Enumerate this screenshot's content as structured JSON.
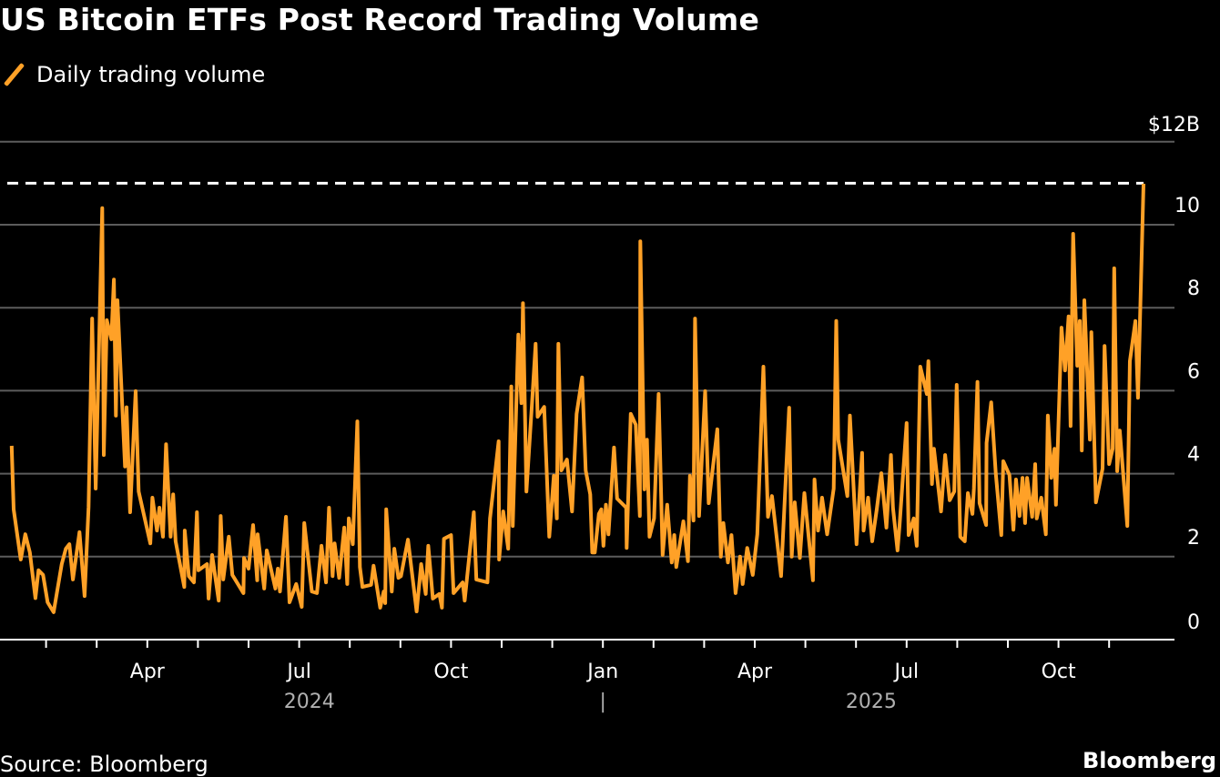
{
  "title": "US Bitcoin ETFs Post Record Trading Volume",
  "legend": {
    "label": "Daily trading volume",
    "icon": "orange-line-swatch"
  },
  "source": "Source: Bloomberg",
  "brand": "Bloomberg",
  "colors": {
    "line": "#ffa127",
    "grid": "#5c5c5c",
    "record": "#ffffff",
    "text": "#ffffff",
    "year": "#b0b0b0"
  },
  "chart_data": {
    "type": "line",
    "title": "US Bitcoin ETFs Post Record Trading Volume",
    "xlabel": "",
    "ylabel": "",
    "x_units": "months since 2024-01-01",
    "xlim": [
      0,
      23
    ],
    "ylim": [
      0,
      12
    ],
    "grid": true,
    "legend_position": "top-left",
    "y_ticks": [
      0,
      2,
      4,
      6,
      8,
      10,
      12
    ],
    "y_tick_labels": [
      "0",
      "2",
      "4",
      "6",
      "8",
      "10",
      "$12B"
    ],
    "x_minor_ticks": [
      1,
      2,
      3,
      4,
      5,
      6,
      7,
      8,
      9,
      10,
      11,
      12,
      13,
      14,
      15,
      16,
      17,
      18,
      19,
      20,
      21,
      22
    ],
    "x_ticks": [
      {
        "m": 3,
        "label": "Apr"
      },
      {
        "m": 6,
        "label": "Jul"
      },
      {
        "m": 9,
        "label": "Oct"
      },
      {
        "m": 12,
        "label": "Jan"
      },
      {
        "m": 15,
        "label": "Apr"
      },
      {
        "m": 18,
        "label": "Jul"
      },
      {
        "m": 21,
        "label": "Oct"
      }
    ],
    "years": [
      {
        "m": 6.2,
        "label": "2024"
      },
      {
        "m": 12,
        "label": "|"
      },
      {
        "m": 17.3,
        "label": "2025"
      }
    ],
    "record_line": 11.0,
    "series": [
      {
        "name": "Daily trading volume",
        "points": [
          [
            0.32,
            4.67
          ],
          [
            0.36,
            3.14
          ],
          [
            0.5,
            1.93
          ],
          [
            0.59,
            2.54
          ],
          [
            0.68,
            2.1
          ],
          [
            0.79,
            1.0
          ],
          [
            0.85,
            1.67
          ],
          [
            0.94,
            1.56
          ],
          [
            1.03,
            0.9
          ],
          [
            1.15,
            0.66
          ],
          [
            1.31,
            1.82
          ],
          [
            1.39,
            2.19
          ],
          [
            1.46,
            2.3
          ],
          [
            1.53,
            1.45
          ],
          [
            1.66,
            2.59
          ],
          [
            1.76,
            1.05
          ],
          [
            1.84,
            3.2
          ],
          [
            1.91,
            7.74
          ],
          [
            1.98,
            3.64
          ],
          [
            2.11,
            10.4
          ],
          [
            2.14,
            4.45
          ],
          [
            2.2,
            7.7
          ],
          [
            2.29,
            7.24
          ],
          [
            2.34,
            8.68
          ],
          [
            2.38,
            5.4
          ],
          [
            2.41,
            8.18
          ],
          [
            2.56,
            4.17
          ],
          [
            2.59,
            5.6
          ],
          [
            2.66,
            3.07
          ],
          [
            2.77,
            5.99
          ],
          [
            2.83,
            3.57
          ],
          [
            3.06,
            2.32
          ],
          [
            3.1,
            3.42
          ],
          [
            3.19,
            2.63
          ],
          [
            3.24,
            3.18
          ],
          [
            3.31,
            2.48
          ],
          [
            3.37,
            4.71
          ],
          [
            3.46,
            2.48
          ],
          [
            3.51,
            3.5
          ],
          [
            3.56,
            2.37
          ],
          [
            3.73,
            1.27
          ],
          [
            3.74,
            2.63
          ],
          [
            3.82,
            1.53
          ],
          [
            3.92,
            1.38
          ],
          [
            3.98,
            3.07
          ],
          [
            4.01,
            1.67
          ],
          [
            4.18,
            1.82
          ],
          [
            4.21,
            0.99
          ],
          [
            4.28,
            2.04
          ],
          [
            4.41,
            0.94
          ],
          [
            4.45,
            2.98
          ],
          [
            4.5,
            1.45
          ],
          [
            4.61,
            2.48
          ],
          [
            4.68,
            1.56
          ],
          [
            4.9,
            1.12
          ],
          [
            4.91,
            1.97
          ],
          [
            5.0,
            1.71
          ],
          [
            5.09,
            2.76
          ],
          [
            5.17,
            1.43
          ],
          [
            5.18,
            2.54
          ],
          [
            5.31,
            1.23
          ],
          [
            5.36,
            2.15
          ],
          [
            5.53,
            1.23
          ],
          [
            5.58,
            1.71
          ],
          [
            5.62,
            1.16
          ],
          [
            5.74,
            2.96
          ],
          [
            5.81,
            0.9
          ],
          [
            5.94,
            1.34
          ],
          [
            6.05,
            0.79
          ],
          [
            6.1,
            2.81
          ],
          [
            6.25,
            1.16
          ],
          [
            6.35,
            1.12
          ],
          [
            6.44,
            2.26
          ],
          [
            6.53,
            1.38
          ],
          [
            6.59,
            3.18
          ],
          [
            6.66,
            1.53
          ],
          [
            6.7,
            2.32
          ],
          [
            6.79,
            1.49
          ],
          [
            6.89,
            2.7
          ],
          [
            6.95,
            1.34
          ],
          [
            6.98,
            2.92
          ],
          [
            7.06,
            2.3
          ],
          [
            7.15,
            5.26
          ],
          [
            7.2,
            1.75
          ],
          [
            7.25,
            1.27
          ],
          [
            7.42,
            1.32
          ],
          [
            7.47,
            1.78
          ],
          [
            7.6,
            0.77
          ],
          [
            7.67,
            1.16
          ],
          [
            7.7,
            0.88
          ],
          [
            7.72,
            3.14
          ],
          [
            7.83,
            1.16
          ],
          [
            7.88,
            2.19
          ],
          [
            7.96,
            1.49
          ],
          [
            8.01,
            1.53
          ],
          [
            8.15,
            2.41
          ],
          [
            8.32,
            0.68
          ],
          [
            8.41,
            1.82
          ],
          [
            8.5,
            1.1
          ],
          [
            8.55,
            2.26
          ],
          [
            8.64,
            0.99
          ],
          [
            8.77,
            1.1
          ],
          [
            8.82,
            0.77
          ],
          [
            8.86,
            2.43
          ],
          [
            9.0,
            2.52
          ],
          [
            9.05,
            1.12
          ],
          [
            9.23,
            1.38
          ],
          [
            9.27,
            0.94
          ],
          [
            9.45,
            3.07
          ],
          [
            9.5,
            1.45
          ],
          [
            9.72,
            1.38
          ],
          [
            9.77,
            2.92
          ],
          [
            9.94,
            4.78
          ],
          [
            9.95,
            1.93
          ],
          [
            10.03,
            3.09
          ],
          [
            10.13,
            2.19
          ],
          [
            10.19,
            6.1
          ],
          [
            10.22,
            2.74
          ],
          [
            10.33,
            7.35
          ],
          [
            10.39,
            5.7
          ],
          [
            10.42,
            8.11
          ],
          [
            10.49,
            3.57
          ],
          [
            10.6,
            5.72
          ],
          [
            10.67,
            7.13
          ],
          [
            10.71,
            5.37
          ],
          [
            10.84,
            5.61
          ],
          [
            10.94,
            2.48
          ],
          [
            11.03,
            3.95
          ],
          [
            11.09,
            2.92
          ],
          [
            11.12,
            7.13
          ],
          [
            11.18,
            4.08
          ],
          [
            11.29,
            4.34
          ],
          [
            11.39,
            3.09
          ],
          [
            11.48,
            5.44
          ],
          [
            11.59,
            6.32
          ],
          [
            11.66,
            4.08
          ],
          [
            11.75,
            3.5
          ],
          [
            11.79,
            2.1
          ],
          [
            11.84,
            2.1
          ],
          [
            11.92,
            3.03
          ],
          [
            11.97,
            3.14
          ],
          [
            12.01,
            2.26
          ],
          [
            12.06,
            3.25
          ],
          [
            12.11,
            2.54
          ],
          [
            12.22,
            4.63
          ],
          [
            12.28,
            3.4
          ],
          [
            12.46,
            3.18
          ],
          [
            12.47,
            2.21
          ],
          [
            12.55,
            5.44
          ],
          [
            12.65,
            5.18
          ],
          [
            12.73,
            2.98
          ],
          [
            12.74,
            9.6
          ],
          [
            12.82,
            3.62
          ],
          [
            12.87,
            4.82
          ],
          [
            12.92,
            2.48
          ],
          [
            13.01,
            2.92
          ],
          [
            13.1,
            5.92
          ],
          [
            13.18,
            2.04
          ],
          [
            13.27,
            3.25
          ],
          [
            13.36,
            1.86
          ],
          [
            13.41,
            2.52
          ],
          [
            13.45,
            1.75
          ],
          [
            13.59,
            2.85
          ],
          [
            13.68,
            1.89
          ],
          [
            13.72,
            3.95
          ],
          [
            13.79,
            2.87
          ],
          [
            13.82,
            7.74
          ],
          [
            13.9,
            2.98
          ],
          [
            14.02,
            5.99
          ],
          [
            14.09,
            3.29
          ],
          [
            14.26,
            5.07
          ],
          [
            14.33,
            2.0
          ],
          [
            14.38,
            2.81
          ],
          [
            14.47,
            1.86
          ],
          [
            14.54,
            2.52
          ],
          [
            14.62,
            1.12
          ],
          [
            14.71,
            2.0
          ],
          [
            14.76,
            1.34
          ],
          [
            14.85,
            2.21
          ],
          [
            14.96,
            1.56
          ],
          [
            15.05,
            2.54
          ],
          [
            15.17,
            6.58
          ],
          [
            15.26,
            2.96
          ],
          [
            15.34,
            3.46
          ],
          [
            15.52,
            1.53
          ],
          [
            15.68,
            5.59
          ],
          [
            15.73,
            2.0
          ],
          [
            15.79,
            3.31
          ],
          [
            15.89,
            1.97
          ],
          [
            15.98,
            3.53
          ],
          [
            16.15,
            1.43
          ],
          [
            16.18,
            3.86
          ],
          [
            16.25,
            2.63
          ],
          [
            16.33,
            3.42
          ],
          [
            16.43,
            2.54
          ],
          [
            16.56,
            3.64
          ],
          [
            16.61,
            7.68
          ],
          [
            16.65,
            4.82
          ],
          [
            16.83,
            3.46
          ],
          [
            16.88,
            5.4
          ],
          [
            17.01,
            2.3
          ],
          [
            17.12,
            4.5
          ],
          [
            17.15,
            2.63
          ],
          [
            17.24,
            3.42
          ],
          [
            17.32,
            2.37
          ],
          [
            17.41,
            3.14
          ],
          [
            17.5,
            4.01
          ],
          [
            17.6,
            2.7
          ],
          [
            17.69,
            4.45
          ],
          [
            17.73,
            3.18
          ],
          [
            17.82,
            2.15
          ],
          [
            17.86,
            2.74
          ],
          [
            18.0,
            5.22
          ],
          [
            18.04,
            2.52
          ],
          [
            18.14,
            2.92
          ],
          [
            18.2,
            2.26
          ],
          [
            18.27,
            6.58
          ],
          [
            18.4,
            5.92
          ],
          [
            18.43,
            6.71
          ],
          [
            18.5,
            3.75
          ],
          [
            18.54,
            4.6
          ],
          [
            18.68,
            3.09
          ],
          [
            18.76,
            4.45
          ],
          [
            18.85,
            3.36
          ],
          [
            18.94,
            3.57
          ],
          [
            18.99,
            6.14
          ],
          [
            19.06,
            2.48
          ],
          [
            19.15,
            2.37
          ],
          [
            19.21,
            3.53
          ],
          [
            19.3,
            3.03
          ],
          [
            19.33,
            3.64
          ],
          [
            19.4,
            6.21
          ],
          [
            19.44,
            3.29
          ],
          [
            19.57,
            2.76
          ],
          [
            19.58,
            4.74
          ],
          [
            19.67,
            5.72
          ],
          [
            19.76,
            4.01
          ],
          [
            19.87,
            2.52
          ],
          [
            19.91,
            4.3
          ],
          [
            20.03,
            3.97
          ],
          [
            20.11,
            2.65
          ],
          [
            20.16,
            3.86
          ],
          [
            20.23,
            2.98
          ],
          [
            20.29,
            3.9
          ],
          [
            20.34,
            2.81
          ],
          [
            20.38,
            3.9
          ],
          [
            20.48,
            2.96
          ],
          [
            20.54,
            4.23
          ],
          [
            20.57,
            2.92
          ],
          [
            20.66,
            3.42
          ],
          [
            20.75,
            2.54
          ],
          [
            20.79,
            5.4
          ],
          [
            20.86,
            3.9
          ],
          [
            20.92,
            4.6
          ],
          [
            20.95,
            3.25
          ],
          [
            21.06,
            7.52
          ],
          [
            21.13,
            6.49
          ],
          [
            21.2,
            7.79
          ],
          [
            21.24,
            5.15
          ],
          [
            21.29,
            9.78
          ],
          [
            21.37,
            6.6
          ],
          [
            21.42,
            7.68
          ],
          [
            21.46,
            4.56
          ],
          [
            21.51,
            8.18
          ],
          [
            21.62,
            4.82
          ],
          [
            21.65,
            7.41
          ],
          [
            21.74,
            3.31
          ],
          [
            21.87,
            4.12
          ],
          [
            21.91,
            7.08
          ],
          [
            22.0,
            4.23
          ],
          [
            22.07,
            4.6
          ],
          [
            22.1,
            8.95
          ],
          [
            22.16,
            4.06
          ],
          [
            22.21,
            5.04
          ],
          [
            22.36,
            2.74
          ],
          [
            22.41,
            6.71
          ],
          [
            22.52,
            7.68
          ],
          [
            22.57,
            5.83
          ],
          [
            22.68,
            10.99
          ]
        ]
      }
    ]
  }
}
